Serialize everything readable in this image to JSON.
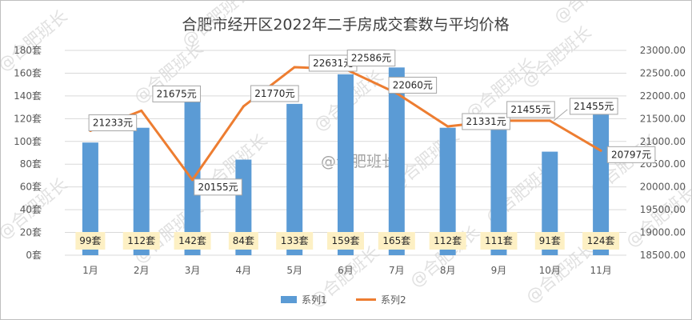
{
  "chart_data": {
    "type": "bar",
    "title": "合肥市经开区2022年二手房成交套数与平均价格",
    "categories": [
      "1月",
      "2月",
      "3月",
      "4月",
      "5月",
      "6月",
      "7月",
      "8月",
      "9月",
      "10月",
      "11月"
    ],
    "series": [
      {
        "name": "系列1",
        "chart_type": "bar",
        "axis": "left",
        "color": "#5b9bd5",
        "values": [
          99,
          112,
          142,
          84,
          133,
          159,
          165,
          112,
          111,
          91,
          124
        ],
        "labels": [
          "99套",
          "112套",
          "142套",
          "84套",
          "133套",
          "159套",
          "165套",
          "112套",
          "111套",
          "91套",
          "124套"
        ]
      },
      {
        "name": "系列2",
        "chart_type": "line",
        "axis": "right",
        "color": "#ed7d31",
        "values": [
          21233,
          21675,
          20155,
          21770,
          22631,
          22586,
          22060,
          21331,
          21455,
          21455,
          20797
        ],
        "labels": [
          "21233元",
          "21675元",
          "20155元",
          "21770元",
          "22631元",
          "22586元",
          "22060元",
          "21331元",
          "21455元",
          "21455元",
          "20797元"
        ]
      }
    ],
    "y_left": {
      "range": [
        0,
        180
      ],
      "ticks": [
        0,
        20,
        40,
        60,
        80,
        100,
        120,
        140,
        160,
        180
      ],
      "tick_labels": [
        "0套",
        "20套",
        "40套",
        "60套",
        "80套",
        "100套",
        "120套",
        "140套",
        "160套",
        "180套"
      ]
    },
    "y_right": {
      "range": [
        18500,
        23000
      ],
      "ticks": [
        18500,
        19000,
        19500,
        20000,
        20500,
        21000,
        21500,
        22000,
        22500,
        23000
      ],
      "tick_labels": [
        "18500.00",
        "19000.00",
        "19500.00",
        "20000.00",
        "20500.00",
        "21000.00",
        "21500.00",
        "22000.00",
        "22500.00",
        "23000.00"
      ]
    },
    "grid": true,
    "legend_position": "bottom",
    "watermark": "@合肥班长"
  }
}
